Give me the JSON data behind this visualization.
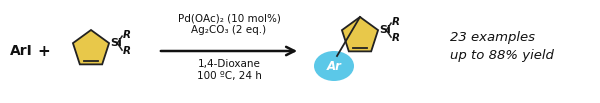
{
  "bg_color": "#ffffff",
  "text_aryl": "ArI",
  "text_plus": "+",
  "text_si": "Si",
  "text_R1": "R",
  "text_R2": "R",
  "text_ar_circle": "Ar",
  "condition_line1": "Pd(OAc)₂ (10 mol%)",
  "condition_line2": "Ag₂CO₃ (2 eq.)",
  "condition_line3": "1,4-Dioxane",
  "condition_line4": "100 ºC, 24 h",
  "yield_line1": "23 examples",
  "yield_line2": "up to 88% yield",
  "pentagon_color": "#E8C84A",
  "pentagon_outline": "#222222",
  "ar_circle_color": "#5BC8E8",
  "arrow_color": "#111111",
  "text_color": "#111111",
  "figsize": [
    6.0,
    1.03
  ],
  "dpi": 100
}
